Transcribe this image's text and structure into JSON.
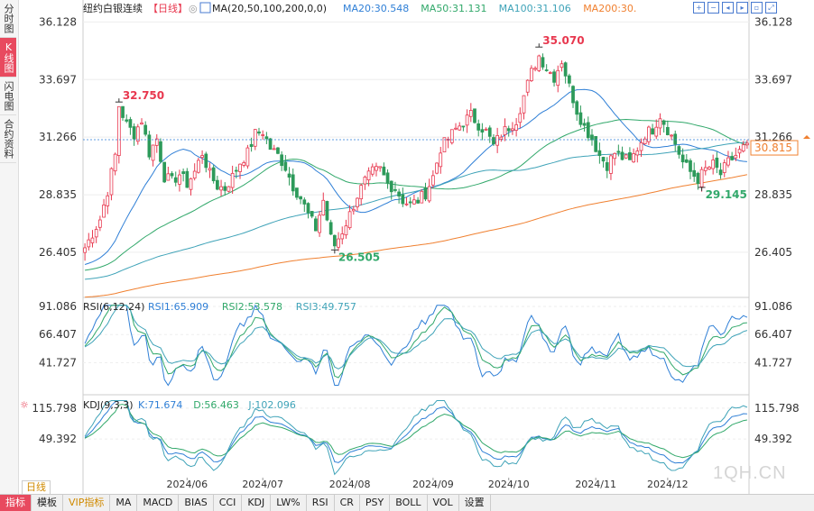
{
  "app": {
    "sidebar_tabs": [
      "分时图",
      "K线图",
      "闪电图",
      "合约资料"
    ],
    "active_sidebar_tab": "K线图",
    "watermark": "1QH.CN",
    "period_button": "日线",
    "bottom_tabs": [
      "指标",
      "模板",
      "VIP指标",
      "MA",
      "MACD",
      "BIAS",
      "CCI",
      "KDJ",
      "LW%",
      "RSI",
      "CR",
      "PSY",
      "BOLL",
      "VOL",
      "设置"
    ],
    "active_bottom_tab": "指标",
    "top_icons": [
      "plus-icon",
      "minus-icon",
      "left-icon",
      "right-icon",
      "fit-icon",
      "expand-icon"
    ]
  },
  "chart_data": [
    {
      "type": "candlestick",
      "title": "纽约白银连续",
      "period_label": "【日线】",
      "ma_label": "MA(20,50,100,200,0,0)",
      "ma_legend": [
        {
          "name": "MA20:30.548",
          "color": "#2f7fd6"
        },
        {
          "name": "MA50:31.131",
          "color": "#31a86a"
        },
        {
          "name": "MA100:31.106",
          "color": "#3fa3b8"
        },
        {
          "name": "MA200:30.",
          "color": "#f08030"
        }
      ],
      "ylim": [
        24.5,
        36.6
      ],
      "y_ticks": [
        "36.128",
        "33.697",
        "31.266",
        "28.835",
        "26.405"
      ],
      "last_price": "30.815",
      "annotations": [
        {
          "label": "32.750",
          "type": "high",
          "index": 9,
          "value": 32.75
        },
        {
          "label": "26.505",
          "type": "low",
          "index": 66,
          "value": 26.505
        },
        {
          "label": "35.070",
          "type": "high",
          "index": 120,
          "value": 35.07
        },
        {
          "label": "29.145",
          "type": "low",
          "index": 163,
          "value": 29.145
        }
      ],
      "x_ticks": [
        {
          "label": "2024/06",
          "index": 27
        },
        {
          "label": "2024/07",
          "index": 47
        },
        {
          "label": "2024/08",
          "index": 70
        },
        {
          "label": "2024/09",
          "index": 92
        },
        {
          "label": "2024/10",
          "index": 112
        },
        {
          "label": "2024/11",
          "index": 135
        },
        {
          "label": "2024/12",
          "index": 154
        }
      ],
      "close_path": [
        [
          0,
          26.6
        ],
        [
          2,
          27.2
        ],
        [
          4,
          27.8
        ],
        [
          6,
          29.0
        ],
        [
          8,
          30.5
        ],
        [
          9,
          32.6
        ],
        [
          11,
          31.8
        ],
        [
          13,
          31.4
        ],
        [
          15,
          32.0
        ],
        [
          17,
          30.6
        ],
        [
          19,
          31.2
        ],
        [
          21,
          29.6
        ],
        [
          23,
          29.4
        ],
        [
          25,
          29.7
        ],
        [
          27,
          29.3
        ],
        [
          29,
          29.8
        ],
        [
          31,
          30.6
        ],
        [
          33,
          29.7
        ],
        [
          35,
          29.2
        ],
        [
          37,
          29.1
        ],
        [
          39,
          29.6
        ],
        [
          41,
          30.2
        ],
        [
          43,
          30.6
        ],
        [
          45,
          31.4
        ],
        [
          47,
          31.5
        ],
        [
          49,
          30.8
        ],
        [
          51,
          30.5
        ],
        [
          53,
          30.0
        ],
        [
          55,
          29.2
        ],
        [
          57,
          28.7
        ],
        [
          59,
          28.0
        ],
        [
          61,
          27.4
        ],
        [
          63,
          28.6
        ],
        [
          65,
          27.0
        ],
        [
          66,
          26.7
        ],
        [
          68,
          27.3
        ],
        [
          70,
          28.0
        ],
        [
          72,
          28.8
        ],
        [
          74,
          29.4
        ],
        [
          76,
          29.8
        ],
        [
          78,
          29.9
        ],
        [
          80,
          29.3
        ],
        [
          82,
          29.1
        ],
        [
          84,
          28.6
        ],
        [
          86,
          28.4
        ],
        [
          88,
          28.6
        ],
        [
          90,
          28.9
        ],
        [
          92,
          29.6
        ],
        [
          94,
          30.8
        ],
        [
          96,
          31.2
        ],
        [
          98,
          31.6
        ],
        [
          100,
          31.9
        ],
        [
          102,
          32.2
        ],
        [
          104,
          31.8
        ],
        [
          106,
          31.5
        ],
        [
          108,
          30.9
        ],
        [
          110,
          31.4
        ],
        [
          112,
          31.7
        ],
        [
          114,
          32.0
        ],
        [
          116,
          33.0
        ],
        [
          118,
          34.0
        ],
        [
          120,
          34.7
        ],
        [
          122,
          34.2
        ],
        [
          124,
          33.8
        ],
        [
          126,
          34.5
        ],
        [
          128,
          33.4
        ],
        [
          130,
          32.4
        ],
        [
          132,
          31.7
        ],
        [
          134,
          31.2
        ],
        [
          136,
          30.5
        ],
        [
          138,
          30.1
        ],
        [
          140,
          30.6
        ],
        [
          142,
          30.4
        ],
        [
          144,
          30.2
        ],
        [
          146,
          30.8
        ],
        [
          148,
          31.4
        ],
        [
          150,
          31.6
        ],
        [
          152,
          32.2
        ],
        [
          154,
          31.6
        ],
        [
          156,
          31.0
        ],
        [
          158,
          30.2
        ],
        [
          160,
          29.8
        ],
        [
          162,
          29.5
        ],
        [
          164,
          29.9
        ],
        [
          166,
          30.1
        ],
        [
          168,
          29.7
        ],
        [
          170,
          30.2
        ],
        [
          172,
          30.5
        ],
        [
          174,
          30.8
        ]
      ]
    },
    {
      "type": "line",
      "title": "RSI(6,12,24)",
      "series": [
        {
          "name": "RSI1:65.909",
          "color": "#2f7fd6"
        },
        {
          "name": "RSI2:53.578",
          "color": "#31a86a"
        },
        {
          "name": "RSI3:49.757",
          "color": "#3fa3b8"
        }
      ],
      "y_ticks": [
        "91.086",
        "66.407",
        "41.727"
      ],
      "ylim": [
        20,
        95
      ]
    },
    {
      "type": "line",
      "title": "KDJ(9,3,3)",
      "series": [
        {
          "name": "K:71.674",
          "color": "#2f7fd6"
        },
        {
          "name": "D:56.463",
          "color": "#31a86a"
        },
        {
          "name": "J:102.096",
          "color": "#3fa3b8"
        }
      ],
      "y_ticks": [
        "115.798",
        "49.392"
      ],
      "ylim": [
        -30,
        135
      ]
    }
  ]
}
